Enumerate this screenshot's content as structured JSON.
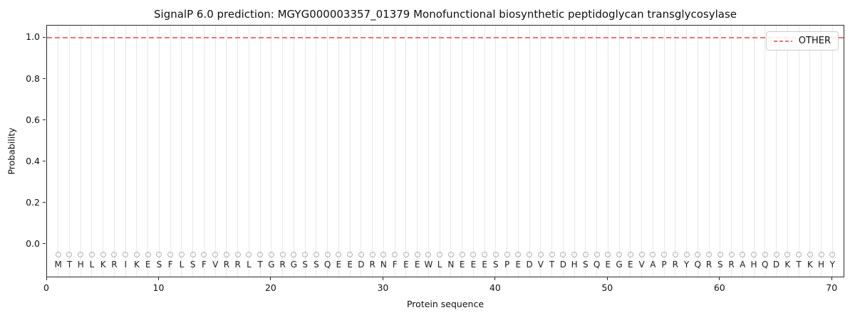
{
  "title": "SignalP 6.0 prediction: MGYG000003357_01379 Monofunctional biosynthetic peptidoglycan transglycosylase",
  "axes": {
    "ylabel": "Probability",
    "xlabel": "Protein sequence"
  },
  "legend": {
    "position": "upper right",
    "items": [
      {
        "label": "OTHER",
        "color": "#ee7272",
        "linestyle": "dashed"
      }
    ]
  },
  "colors": {
    "other_line": "#ee7272",
    "grid": "#e8e8e8",
    "marker_outline": "#b3b3b3",
    "frame": "#2b2b2b"
  },
  "chart_data": {
    "type": "line",
    "title": "SignalP 6.0 prediction: MGYG000003357_01379 Monofunctional biosynthetic peptidoglycan transglycosylase",
    "xlabel": "Protein sequence",
    "ylabel": "Probability",
    "xlim": [
      0,
      71
    ],
    "ylim": [
      -0.155,
      1.06
    ],
    "grid": {
      "vertical_per_residue": true,
      "horizontal": false
    },
    "legend_position": "upper right",
    "xticks": [
      {
        "value": 0,
        "label": "0"
      },
      {
        "value": 10,
        "label": "10"
      },
      {
        "value": 20,
        "label": "20"
      },
      {
        "value": 30,
        "label": "30"
      },
      {
        "value": 40,
        "label": "40"
      },
      {
        "value": 50,
        "label": "50"
      },
      {
        "value": 60,
        "label": "60"
      },
      {
        "value": 70,
        "label": "70"
      }
    ],
    "yticks": [
      {
        "value": 0.0,
        "label": "0.0"
      },
      {
        "value": 0.2,
        "label": "0.2"
      },
      {
        "value": 0.4,
        "label": "0.4"
      },
      {
        "value": 0.6,
        "label": "0.6"
      },
      {
        "value": 0.8,
        "label": "0.8"
      },
      {
        "value": 1.0,
        "label": "1.0"
      }
    ],
    "sequence": "MTHLKRIKESFLSFVRRLTGRGSSQEEDRNFEEWLNEEESPEDVTDHSQEGEVAPRYQRSRAHQDKTKHY",
    "marker_y": -0.05,
    "x": [
      1,
      2,
      3,
      4,
      5,
      6,
      7,
      8,
      9,
      10,
      11,
      12,
      13,
      14,
      15,
      16,
      17,
      18,
      19,
      20,
      21,
      22,
      23,
      24,
      25,
      26,
      27,
      28,
      29,
      30,
      31,
      32,
      33,
      34,
      35,
      36,
      37,
      38,
      39,
      40,
      41,
      42,
      43,
      44,
      45,
      46,
      47,
      48,
      49,
      50,
      51,
      52,
      53,
      54,
      55,
      56,
      57,
      58,
      59,
      60,
      61,
      62,
      63,
      64,
      65,
      66,
      67,
      68,
      69,
      70
    ],
    "series": [
      {
        "name": "OTHER",
        "color": "#ee7272",
        "linestyle": "dashed",
        "values": [
          1.0,
          1.0,
          1.0,
          1.0,
          1.0,
          1.0,
          1.0,
          1.0,
          1.0,
          1.0,
          1.0,
          1.0,
          1.0,
          1.0,
          1.0,
          1.0,
          1.0,
          1.0,
          1.0,
          1.0,
          1.0,
          1.0,
          1.0,
          1.0,
          1.0,
          1.0,
          1.0,
          1.0,
          1.0,
          1.0,
          1.0,
          1.0,
          1.0,
          1.0,
          1.0,
          1.0,
          1.0,
          1.0,
          1.0,
          1.0,
          1.0,
          1.0,
          1.0,
          1.0,
          1.0,
          1.0,
          1.0,
          1.0,
          1.0,
          1.0,
          1.0,
          1.0,
          1.0,
          1.0,
          1.0,
          1.0,
          1.0,
          1.0,
          1.0,
          1.0,
          1.0,
          1.0,
          1.0,
          1.0,
          1.0,
          1.0,
          1.0,
          1.0,
          1.0,
          1.0
        ]
      }
    ]
  }
}
